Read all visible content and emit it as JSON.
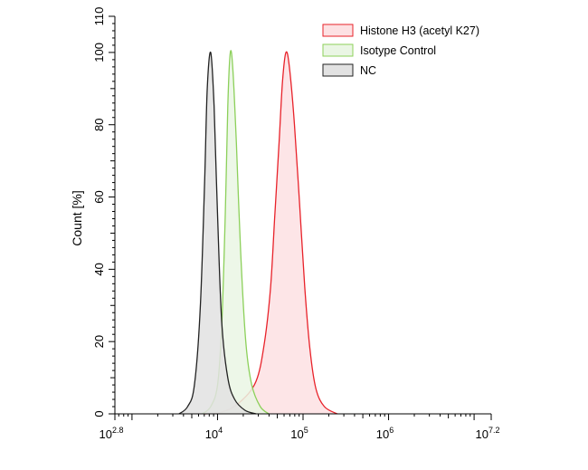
{
  "chart_data": {
    "type": "area",
    "ylabel": "Count [%]",
    "xscale": "log10",
    "xlim_log10": [
      2.8,
      7.2
    ],
    "ylim": [
      0,
      110
    ],
    "y_ticks": [
      0,
      20,
      40,
      60,
      80,
      100,
      110
    ],
    "x_ticks": [
      {
        "base": "10",
        "exp": "2.8"
      },
      {
        "base": "10",
        "exp": "4"
      },
      {
        "base": "10",
        "exp": "5"
      },
      {
        "base": "10",
        "exp": "6"
      },
      {
        "base": "10",
        "exp": "7.2"
      }
    ],
    "legend_position": "top-right",
    "series": [
      {
        "name": "Histone H3 (acetyl K27)",
        "stroke": "#e8222a",
        "fill": "#fde1e3",
        "points": [
          [
            3.85,
            0
          ],
          [
            4.05,
            0.5
          ],
          [
            4.25,
            3
          ],
          [
            4.45,
            9
          ],
          [
            4.55,
            20
          ],
          [
            4.62,
            35
          ],
          [
            4.67,
            55
          ],
          [
            4.72,
            75
          ],
          [
            4.76,
            92
          ],
          [
            4.8,
            100
          ],
          [
            4.84,
            96
          ],
          [
            4.9,
            80
          ],
          [
            4.96,
            58
          ],
          [
            5.02,
            35
          ],
          [
            5.08,
            18
          ],
          [
            5.15,
            7
          ],
          [
            5.25,
            2
          ],
          [
            5.4,
            0
          ]
        ]
      },
      {
        "name": "Isotype Control",
        "stroke": "#8cd05a",
        "fill": "#eaf6e4",
        "points": [
          [
            3.82,
            0
          ],
          [
            3.92,
            2
          ],
          [
            4.0,
            8
          ],
          [
            4.05,
            25
          ],
          [
            4.09,
            55
          ],
          [
            4.12,
            85
          ],
          [
            4.15,
            100
          ],
          [
            4.18,
            95
          ],
          [
            4.22,
            75
          ],
          [
            4.27,
            45
          ],
          [
            4.33,
            20
          ],
          [
            4.4,
            8
          ],
          [
            4.5,
            2
          ],
          [
            4.6,
            0
          ]
        ]
      },
      {
        "name": "NC",
        "stroke": "#222222",
        "fill": "#e2e2e2",
        "points": [
          [
            3.55,
            0
          ],
          [
            3.65,
            2
          ],
          [
            3.73,
            8
          ],
          [
            3.8,
            30
          ],
          [
            3.85,
            65
          ],
          [
            3.88,
            90
          ],
          [
            3.92,
            100
          ],
          [
            3.96,
            85
          ],
          [
            4.0,
            55
          ],
          [
            4.05,
            25
          ],
          [
            4.12,
            10
          ],
          [
            4.2,
            4
          ],
          [
            4.32,
            1
          ],
          [
            4.45,
            0
          ]
        ]
      }
    ]
  }
}
